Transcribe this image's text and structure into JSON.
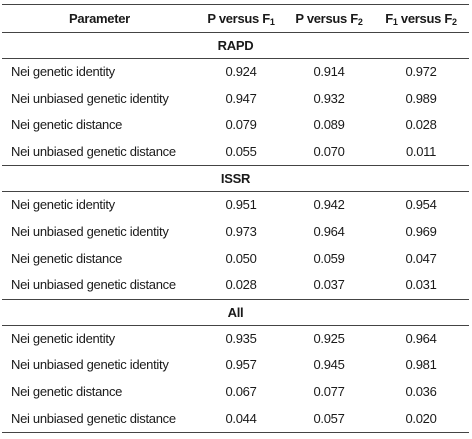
{
  "header": {
    "parameter": "Parameter",
    "col1_prefix": "P versus F",
    "col1_sub": "1",
    "col2_prefix": "P versus F",
    "col2_sub": "2",
    "col3_prefix": "F",
    "col3_sub1": "1",
    "col3_mid": " versus F",
    "col3_sub2": "2"
  },
  "sections": [
    {
      "title": "RAPD",
      "rows": [
        {
          "name": "Nei genetic identity",
          "v1": "0.924",
          "v2": "0.914",
          "v3": "0.972"
        },
        {
          "name": "Nei unbiased genetic identity",
          "v1": "0.947",
          "v2": "0.932",
          "v3": "0.989"
        },
        {
          "name": "Nei genetic distance",
          "v1": "0.079",
          "v2": "0.089",
          "v3": "0.028"
        },
        {
          "name": "Nei unbiased genetic distance",
          "v1": "0.055",
          "v2": "0.070",
          "v3": "0.011"
        }
      ]
    },
    {
      "title": "ISSR",
      "rows": [
        {
          "name": "Nei genetic identity",
          "v1": "0.951",
          "v2": "0.942",
          "v3": "0.954"
        },
        {
          "name": "Nei unbiased genetic identity",
          "v1": "0.973",
          "v2": "0.964",
          "v3": "0.969"
        },
        {
          "name": "Nei genetic distance",
          "v1": "0.050",
          "v2": "0.059",
          "v3": "0.047"
        },
        {
          "name": "Nei unbiased genetic distance",
          "v1": "0.028",
          "v2": "0.037",
          "v3": "0.031"
        }
      ]
    },
    {
      "title": "All",
      "rows": [
        {
          "name": "Nei genetic identity",
          "v1": "0.935",
          "v2": "0.925",
          "v3": "0.964"
        },
        {
          "name": "Nei unbiased genetic identity",
          "v1": "0.957",
          "v2": "0.945",
          "v3": "0.981"
        },
        {
          "name": "Nei genetic distance",
          "v1": "0.067",
          "v2": "0.077",
          "v3": "0.036"
        },
        {
          "name": "Nei unbiased genetic distance",
          "v1": "0.044",
          "v2": "0.057",
          "v3": "0.020"
        }
      ]
    }
  ]
}
